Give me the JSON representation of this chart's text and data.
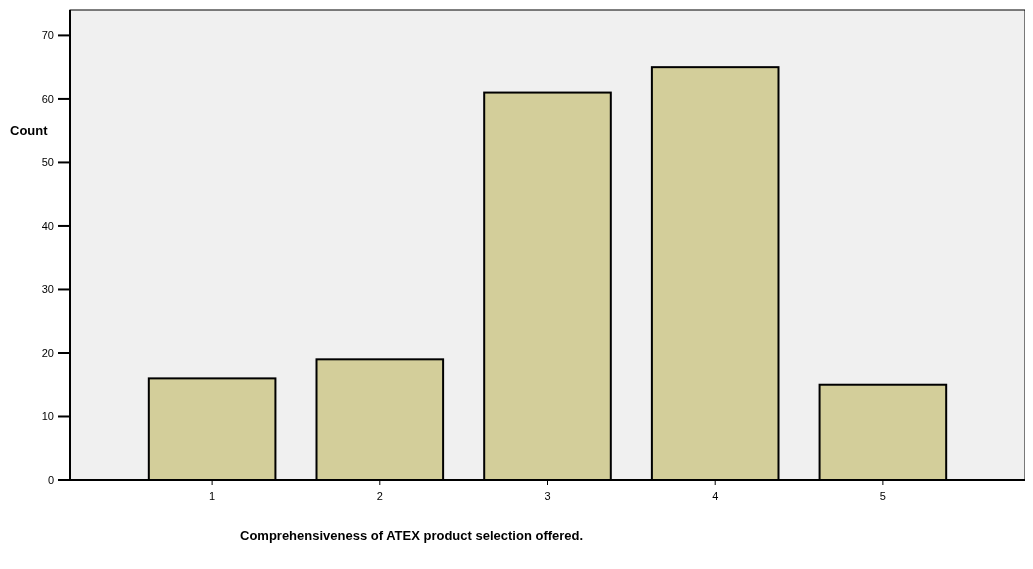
{
  "chart_data": {
    "type": "bar",
    "xlabel": "Comprehensiveness of ATEX product selection offered.",
    "ylabel": "Count",
    "categories": [
      "1",
      "2",
      "3",
      "4",
      "5"
    ],
    "values": [
      16,
      19,
      61,
      65,
      15
    ],
    "color": "#d3ce9a",
    "ylim": [
      0,
      74
    ],
    "yticks": [
      0,
      10,
      20,
      30,
      40,
      50,
      60,
      70
    ],
    "grid": false
  }
}
